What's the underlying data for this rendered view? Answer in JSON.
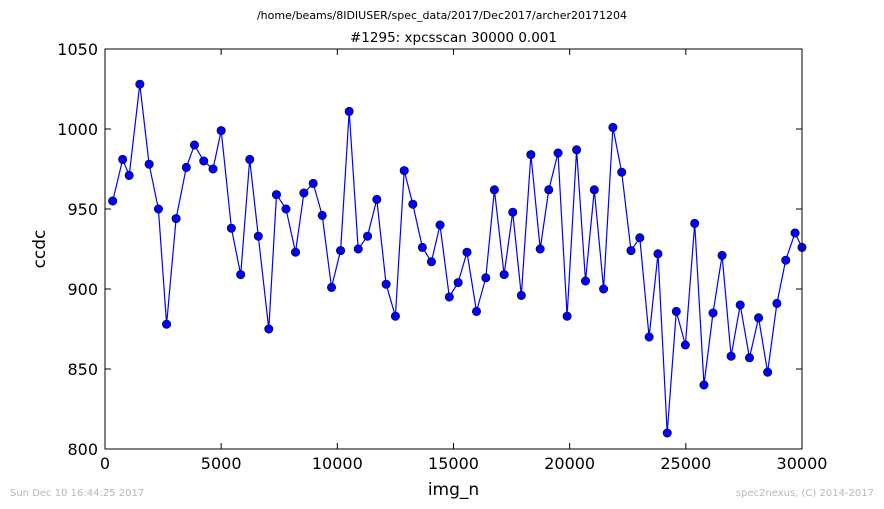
{
  "suptitle": "/home/beams/8IDIUSER/spec_data/2017/Dec2017/archer20171204",
  "footer": {
    "left": "Sun Dec 10 16:44:25 2017",
    "right": "spec2nexus, (C) 2014-2017"
  },
  "colors": {
    "series": "#0000ff",
    "axis": "#000000",
    "footer_text": "#b8b8b8"
  },
  "chart_data": {
    "type": "line",
    "title": "#1295: xpcsscan 30000 0.001",
    "xlabel": "img_n",
    "ylabel": "ccdc",
    "xlim": [
      0,
      30000
    ],
    "ylim": [
      800,
      1050
    ],
    "xticks": [
      0,
      5000,
      10000,
      15000,
      20000,
      25000,
      30000
    ],
    "xtick_labels": [
      "0",
      "5000",
      "10000",
      "15000",
      "20000",
      "25000",
      "30000"
    ],
    "yticks": [
      800,
      850,
      900,
      950,
      1000,
      1050
    ],
    "ytick_labels": [
      "800",
      "850",
      "900",
      "950",
      "1000",
      "1050"
    ],
    "grid": false,
    "marker": "circle",
    "series": [
      {
        "x": [
          330,
          760,
          1040,
          1500,
          1900,
          2300,
          2650,
          3060,
          3500,
          3850,
          4250,
          4650,
          5000,
          5440,
          5840,
          6230,
          6600,
          7050,
          7380,
          7790,
          8200,
          8560,
          8960,
          9350,
          9750,
          10140,
          10510,
          10900,
          11300,
          11700,
          12100,
          12500,
          12880,
          13250,
          13660,
          14050,
          14420,
          14820,
          15200,
          15580,
          15990,
          16390,
          16760,
          17180,
          17550,
          17920,
          18330,
          18730,
          19100,
          19500,
          19890,
          20300,
          20680,
          21060,
          21460,
          21860,
          22240,
          22640,
          23020,
          23420,
          23800,
          24200,
          24590,
          24980,
          25380,
          25780,
          26170,
          26560,
          26950,
          27340,
          27740,
          28130,
          28520,
          28920,
          29300,
          29700,
          30000
        ],
        "y": [
          955,
          981,
          971,
          1028,
          978,
          950,
          878,
          944,
          976,
          990,
          980,
          975,
          999,
          938,
          909,
          981,
          933,
          875,
          959,
          950,
          923,
          960,
          966,
          946,
          901,
          924,
          1011,
          925,
          933,
          956,
          903,
          883,
          974,
          953,
          926,
          917,
          940,
          895,
          904,
          923,
          886,
          907,
          962,
          909,
          948,
          896,
          984,
          925,
          962,
          985,
          883,
          987,
          905,
          962,
          900,
          1001,
          973,
          924,
          932,
          870,
          922,
          810,
          886,
          865,
          941,
          840,
          885,
          921,
          858,
          890,
          857,
          882,
          848,
          891,
          918,
          935,
          926
        ]
      }
    ]
  }
}
